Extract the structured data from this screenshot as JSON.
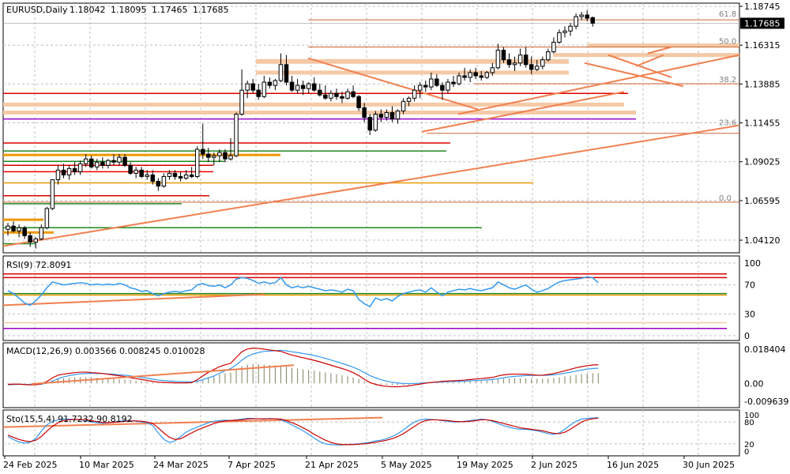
{
  "chart_data": {
    "type": "candlestick",
    "header": {
      "symbol": "EURUSD,Daily",
      "open": "1.18042",
      "high": "1.18095",
      "low": "1.17465",
      "close": "1.17685"
    },
    "current_price": "1.17685",
    "price_ticks": [
      "1.18745",
      "1.16315",
      "1.13885",
      "1.11455",
      "1.09025",
      "1.06595",
      "1.04120"
    ],
    "fib_levels": [
      {
        "label": "61.8",
        "value": 1.18
      },
      {
        "label": "50.0",
        "value": 1.163
      },
      {
        "label": "38.2",
        "value": 1.139
      },
      {
        "label": "23.6",
        "value": 1.112
      },
      {
        "label": "0.0",
        "value": 1.065
      }
    ],
    "date_ticks": [
      "24 Feb 2025",
      "10 Mar 2025",
      "24 Mar 2025",
      "7 Apr 2025",
      "21 Apr 2025",
      "5 May 2025",
      "19 May 2025",
      "2 Jun 2025",
      "16 Jun 2025",
      "30 Jun 2025"
    ],
    "candles": [
      [
        1.048,
        1.052,
        1.044,
        1.05
      ],
      [
        1.05,
        1.053,
        1.046,
        1.047
      ],
      [
        1.047,
        1.051,
        1.043,
        1.049
      ],
      [
        1.049,
        1.05,
        1.042,
        1.044
      ],
      [
        1.044,
        1.046,
        1.037,
        1.04
      ],
      [
        1.04,
        1.043,
        1.036,
        1.042
      ],
      [
        1.042,
        1.051,
        1.041,
        1.049
      ],
      [
        1.049,
        1.062,
        1.048,
        1.061
      ],
      [
        1.061,
        1.079,
        1.06,
        1.079
      ],
      [
        1.079,
        1.088,
        1.076,
        1.085
      ],
      [
        1.085,
        1.089,
        1.08,
        1.082
      ],
      [
        1.082,
        1.088,
        1.079,
        1.086
      ],
      [
        1.086,
        1.09,
        1.082,
        1.084
      ],
      [
        1.084,
        1.091,
        1.082,
        1.089
      ],
      [
        1.089,
        1.095,
        1.087,
        1.092
      ],
      [
        1.092,
        1.094,
        1.086,
        1.087
      ],
      [
        1.087,
        1.092,
        1.085,
        1.09
      ],
      [
        1.09,
        1.093,
        1.086,
        1.088
      ],
      [
        1.088,
        1.092,
        1.086,
        1.091
      ],
      [
        1.091,
        1.095,
        1.088,
        1.09
      ],
      [
        1.09,
        1.095,
        1.088,
        1.093
      ],
      [
        1.093,
        1.095,
        1.087,
        1.088
      ],
      [
        1.088,
        1.09,
        1.082,
        1.083
      ],
      [
        1.083,
        1.087,
        1.08,
        1.085
      ],
      [
        1.085,
        1.087,
        1.08,
        1.081
      ],
      [
        1.081,
        1.085,
        1.079,
        1.082
      ],
      [
        1.082,
        1.085,
        1.076,
        1.078
      ],
      [
        1.078,
        1.08,
        1.072,
        1.075
      ],
      [
        1.075,
        1.083,
        1.074,
        1.081
      ],
      [
        1.081,
        1.085,
        1.079,
        1.083
      ],
      [
        1.083,
        1.085,
        1.079,
        1.081
      ],
      [
        1.081,
        1.084,
        1.078,
        1.08
      ],
      [
        1.08,
        1.085,
        1.079,
        1.082
      ],
      [
        1.082,
        1.087,
        1.08,
        1.081
      ],
      [
        1.081,
        1.1,
        1.08,
        1.098
      ],
      [
        1.098,
        1.114,
        1.092,
        1.095
      ],
      [
        1.095,
        1.099,
        1.09,
        1.093
      ],
      [
        1.093,
        1.096,
        1.088,
        1.094
      ],
      [
        1.094,
        1.098,
        1.09,
        1.096
      ],
      [
        1.096,
        1.098,
        1.09,
        1.092
      ],
      [
        1.092,
        1.105,
        1.091,
        1.094
      ],
      [
        1.094,
        1.121,
        1.093,
        1.12
      ],
      [
        1.12,
        1.148,
        1.119,
        1.135
      ],
      [
        1.135,
        1.141,
        1.13,
        1.139
      ],
      [
        1.139,
        1.142,
        1.133,
        1.135
      ],
      [
        1.135,
        1.139,
        1.129,
        1.131
      ],
      [
        1.131,
        1.144,
        1.13,
        1.14
      ],
      [
        1.14,
        1.143,
        1.136,
        1.138
      ],
      [
        1.138,
        1.142,
        1.135,
        1.141
      ],
      [
        1.141,
        1.158,
        1.14,
        1.151
      ],
      [
        1.151,
        1.157,
        1.138,
        1.14
      ],
      [
        1.14,
        1.144,
        1.134,
        1.135
      ],
      [
        1.135,
        1.142,
        1.133,
        1.138
      ],
      [
        1.138,
        1.141,
        1.132,
        1.136
      ],
      [
        1.136,
        1.14,
        1.133,
        1.139
      ],
      [
        1.139,
        1.143,
        1.134,
        1.135
      ],
      [
        1.135,
        1.139,
        1.131,
        1.132
      ],
      [
        1.132,
        1.138,
        1.129,
        1.13
      ],
      [
        1.13,
        1.135,
        1.128,
        1.133
      ],
      [
        1.133,
        1.136,
        1.129,
        1.131
      ],
      [
        1.131,
        1.134,
        1.127,
        1.13
      ],
      [
        1.13,
        1.136,
        1.129,
        1.134
      ],
      [
        1.134,
        1.138,
        1.13,
        1.131
      ],
      [
        1.131,
        1.132,
        1.122,
        1.124
      ],
      [
        1.124,
        1.127,
        1.115,
        1.118
      ],
      [
        1.118,
        1.12,
        1.107,
        1.11
      ],
      [
        1.11,
        1.122,
        1.109,
        1.12
      ],
      [
        1.12,
        1.123,
        1.115,
        1.118
      ],
      [
        1.118,
        1.123,
        1.116,
        1.121
      ],
      [
        1.121,
        1.125,
        1.115,
        1.117
      ],
      [
        1.117,
        1.123,
        1.114,
        1.122
      ],
      [
        1.122,
        1.13,
        1.12,
        1.128
      ],
      [
        1.128,
        1.131,
        1.125,
        1.13
      ],
      [
        1.13,
        1.138,
        1.128,
        1.135
      ],
      [
        1.135,
        1.14,
        1.13,
        1.138
      ],
      [
        1.138,
        1.141,
        1.134,
        1.137
      ],
      [
        1.137,
        1.146,
        1.135,
        1.142
      ],
      [
        1.142,
        1.145,
        1.137,
        1.138
      ],
      [
        1.138,
        1.14,
        1.129,
        1.135
      ],
      [
        1.135,
        1.142,
        1.133,
        1.14
      ],
      [
        1.14,
        1.144,
        1.137,
        1.139
      ],
      [
        1.139,
        1.146,
        1.138,
        1.144
      ],
      [
        1.144,
        1.149,
        1.141,
        1.143
      ],
      [
        1.143,
        1.148,
        1.14,
        1.146
      ],
      [
        1.146,
        1.149,
        1.142,
        1.144
      ],
      [
        1.144,
        1.147,
        1.141,
        1.143
      ],
      [
        1.143,
        1.147,
        1.142,
        1.146
      ],
      [
        1.146,
        1.152,
        1.144,
        1.149
      ],
      [
        1.149,
        1.164,
        1.148,
        1.16
      ],
      [
        1.16,
        1.162,
        1.152,
        1.154
      ],
      [
        1.154,
        1.158,
        1.149,
        1.151
      ],
      [
        1.151,
        1.156,
        1.147,
        1.152
      ],
      [
        1.152,
        1.161,
        1.15,
        1.157
      ],
      [
        1.157,
        1.162,
        1.149,
        1.151
      ],
      [
        1.151,
        1.156,
        1.145,
        1.148
      ],
      [
        1.148,
        1.154,
        1.147,
        1.15
      ],
      [
        1.15,
        1.156,
        1.148,
        1.154
      ],
      [
        1.154,
        1.161,
        1.153,
        1.159
      ],
      [
        1.159,
        1.168,
        1.158,
        1.165
      ],
      [
        1.165,
        1.173,
        1.164,
        1.171
      ],
      [
        1.171,
        1.175,
        1.168,
        1.172
      ],
      [
        1.172,
        1.177,
        1.169,
        1.175
      ],
      [
        1.175,
        1.183,
        1.173,
        1.181
      ],
      [
        1.181,
        1.184,
        1.179,
        1.182
      ],
      [
        1.182,
        1.185,
        1.178,
        1.18
      ],
      [
        1.1804,
        1.181,
        1.1747,
        1.1769
      ]
    ],
    "rsi": {
      "label": "RSI(9) 72.8091",
      "levels": [
        "100",
        "70",
        "30",
        "0"
      ],
      "values": [
        62,
        58,
        52,
        45,
        42,
        48,
        56,
        66,
        74,
        72,
        70,
        71,
        72,
        73,
        72,
        70,
        71,
        70,
        71,
        70,
        72,
        70,
        66,
        64,
        61,
        62,
        58,
        55,
        58,
        60,
        61,
        60,
        62,
        63,
        70,
        72,
        69,
        68,
        70,
        66,
        70,
        78,
        80,
        79,
        76,
        72,
        74,
        72,
        73,
        80,
        70,
        66,
        68,
        66,
        68,
        66,
        64,
        62,
        63,
        62,
        60,
        64,
        62,
        50,
        44,
        40,
        52,
        49,
        51,
        48,
        54,
        58,
        60,
        62,
        63,
        60,
        66,
        60,
        55,
        60,
        62,
        64,
        63,
        65,
        63,
        62,
        64,
        66,
        74,
        70,
        66,
        64,
        67,
        70,
        64,
        60,
        62,
        65,
        70,
        74,
        76,
        77,
        78,
        79,
        81,
        80,
        72.8
      ]
    },
    "macd": {
      "label": "MACD(12,26,9) 0.003566 0.008245 0.010028",
      "levels": [
        "0.018404",
        "0.00",
        "-0.009639"
      ],
      "signal": [
        -0.0008,
        -0.0006,
        -0.0005,
        -0.0005,
        -0.0006,
        -0.0006,
        -0.0004,
        0.0001,
        0.0012,
        0.0025,
        0.0035,
        0.0042,
        0.0047,
        0.0051,
        0.0053,
        0.0054,
        0.0054,
        0.0053,
        0.0051,
        0.0049,
        0.0046,
        0.0044,
        0.004,
        0.0036,
        0.0032,
        0.0028,
        0.0023,
        0.0018,
        0.0015,
        0.0013,
        0.0011,
        0.001,
        0.0009,
        0.0008,
        0.0012,
        0.002,
        0.003,
        0.004,
        0.0055,
        0.0068,
        0.008,
        0.01,
        0.0125,
        0.0145,
        0.0158,
        0.0166,
        0.0172,
        0.0174,
        0.0176,
        0.0178,
        0.0175,
        0.017,
        0.0166,
        0.0161,
        0.0156,
        0.015,
        0.0143,
        0.0135,
        0.0126,
        0.0117,
        0.0108,
        0.0098,
        0.0087,
        0.0074,
        0.0058,
        0.0042,
        0.003,
        0.002,
        0.0012,
        0.0006,
        0.0002,
        0.0,
        -0.0001,
        0.0,
        0.0001,
        0.0003,
        0.0005,
        0.0006,
        0.0008,
        0.0009,
        0.001,
        0.0011,
        0.0012,
        0.0014,
        0.0016,
        0.0017,
        0.0019,
        0.0021,
        0.0025,
        0.003,
        0.0035,
        0.0038,
        0.004,
        0.0042,
        0.0043,
        0.0043,
        0.0043,
        0.0044,
        0.0046,
        0.005,
        0.0055,
        0.006,
        0.0066,
        0.0072,
        0.0077,
        0.008,
        0.0082
      ],
      "macd": [
        -0.0005,
        -0.0004,
        -0.0004,
        -0.0006,
        -0.0008,
        -0.0007,
        -0.0003,
        0.001,
        0.003,
        0.0044,
        0.005,
        0.0054,
        0.0058,
        0.006,
        0.0061,
        0.0058,
        0.0056,
        0.0053,
        0.0049,
        0.0045,
        0.0041,
        0.0037,
        0.0031,
        0.0026,
        0.0021,
        0.0016,
        0.0011,
        0.0007,
        0.0005,
        0.0004,
        0.0003,
        0.0003,
        0.0003,
        0.0004,
        0.002,
        0.004,
        0.006,
        0.0075,
        0.009,
        0.01,
        0.0108,
        0.014,
        0.017,
        0.0185,
        0.019,
        0.0188,
        0.0184,
        0.018,
        0.0176,
        0.0172,
        0.0162,
        0.0152,
        0.0145,
        0.0138,
        0.0131,
        0.0124,
        0.0116,
        0.0107,
        0.0098,
        0.0089,
        0.008,
        0.007,
        0.0058,
        0.0042,
        0.0022,
        0.0005,
        -0.0005,
        -0.0012,
        -0.0016,
        -0.0018,
        -0.0018,
        -0.0016,
        -0.0013,
        -0.0008,
        -0.0004,
        0.0001,
        0.0005,
        0.0008,
        0.0011,
        0.0013,
        0.0014,
        0.0016,
        0.0018,
        0.0021,
        0.0024,
        0.0026,
        0.0029,
        0.0032,
        0.004,
        0.0046,
        0.0049,
        0.005,
        0.005,
        0.0049,
        0.0047,
        0.0044,
        0.0044,
        0.0048,
        0.0053,
        0.006,
        0.0068,
        0.0076,
        0.0084,
        0.009,
        0.0095,
        0.0099,
        0.01
      ]
    },
    "stochastic": {
      "label": "Sto(15,5,4) 91.7232 90.8192",
      "levels": [
        "100",
        "80",
        "20",
        "0"
      ],
      "main": [
        40,
        32,
        25,
        22,
        24,
        35,
        55,
        72,
        82,
        86,
        88,
        88,
        87,
        86,
        84,
        80,
        78,
        76,
        78,
        80,
        82,
        84,
        84,
        82,
        80,
        78,
        70,
        50,
        32,
        24,
        28,
        40,
        52,
        60,
        66,
        72,
        78,
        82,
        84,
        85,
        84,
        86,
        88,
        90,
        90,
        89,
        88,
        90,
        89,
        86,
        80,
        72,
        64,
        56,
        46,
        36,
        26,
        20,
        18,
        17,
        17,
        18,
        19,
        20,
        22,
        24,
        28,
        30,
        34,
        40,
        48,
        58,
        70,
        80,
        86,
        88,
        87,
        86,
        84,
        82,
        80,
        80,
        82,
        84,
        86,
        88,
        86,
        82,
        76,
        70,
        66,
        62,
        60,
        60,
        58,
        56,
        52,
        48,
        46,
        50,
        60,
        72,
        82,
        88,
        90,
        91,
        91.7
      ],
      "signal": [
        44,
        38,
        32,
        28,
        26,
        30,
        40,
        55,
        68,
        78,
        84,
        86,
        87,
        87,
        86,
        84,
        81,
        79,
        78,
        79,
        80,
        82,
        83,
        83,
        82,
        80,
        76,
        64,
        50,
        38,
        32,
        34,
        42,
        50,
        58,
        64,
        70,
        76,
        80,
        83,
        84,
        85,
        86,
        88,
        89,
        89,
        89,
        89,
        89,
        88,
        84,
        78,
        72,
        64,
        56,
        46,
        38,
        30,
        24,
        20,
        18,
        18,
        18,
        19,
        20,
        22,
        24,
        27,
        30,
        34,
        40,
        48,
        58,
        68,
        78,
        84,
        86,
        86,
        85,
        84,
        82,
        81,
        81,
        82,
        84,
        86,
        86,
        84,
        80,
        76,
        72,
        68,
        64,
        62,
        60,
        58,
        56,
        52,
        49,
        48,
        52,
        60,
        70,
        80,
        86,
        89,
        90.8
      ]
    }
  }
}
